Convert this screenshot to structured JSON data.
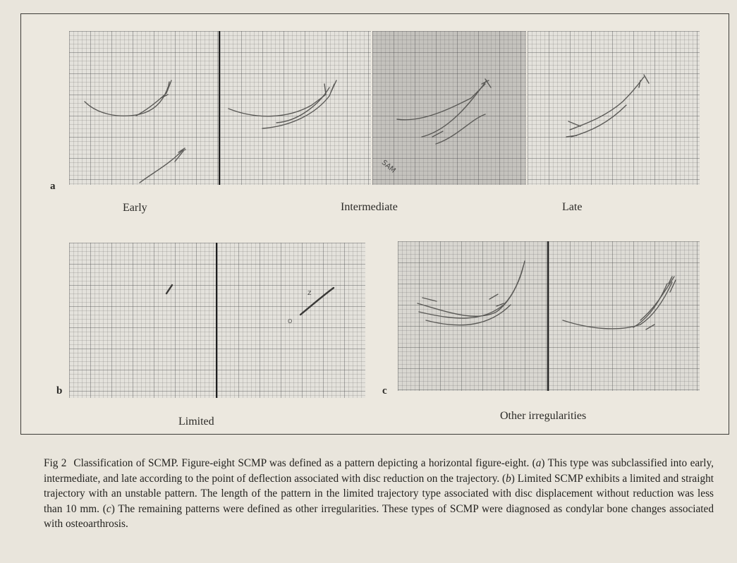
{
  "row_a": {
    "letter": "a",
    "labels": [
      "Early",
      "Intermediate",
      "Late"
    ]
  },
  "row_b": {
    "letter": "b",
    "label": "Limited",
    "marks": [
      "Z",
      "O"
    ]
  },
  "row_c": {
    "letter": "c",
    "label": "Other irregularities"
  },
  "panel_stamp": "SAM",
  "caption": {
    "fig_label": "Fig 2",
    "p1": "Classification of SCMP. Figure-eight SCMP was defined as a pattern depicting a horizontal figure-eight. (",
    "a": "a",
    "p2": ") This type was subclassified into early, intermediate, and late according to the point of deflection associated with disc reduction on the trajectory. (",
    "b": "b",
    "p3": ") Limited SCMP exhibits a limited and straight trajectory with an unstable pattern. The length of the pattern in the limited trajectory type associated with disc displacement without reduction was less than 10 mm. (",
    "c": "c",
    "p4": ") The remaining patterns were defined as other irregularities. These types of SCMP were diagnosed as condylar bone changes associated with osteoarthrosis."
  }
}
